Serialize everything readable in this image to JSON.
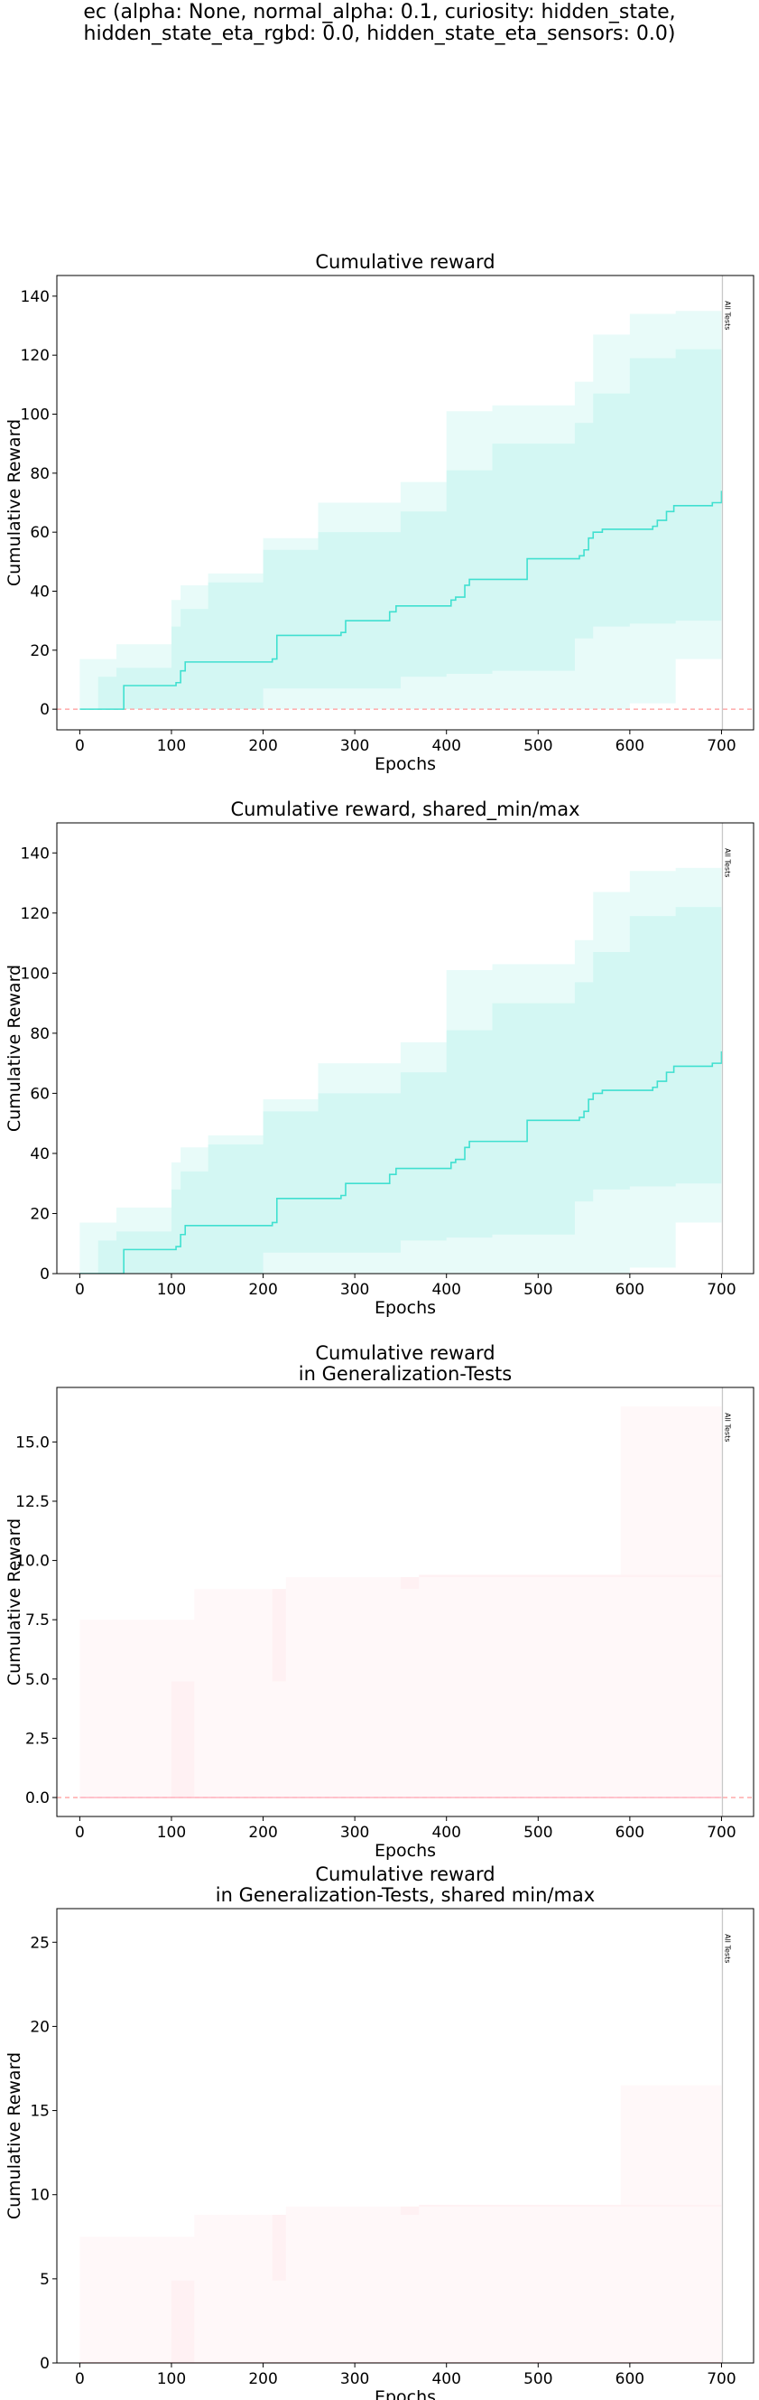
{
  "figure": {
    "suptitle": "ec (alpha: None, normal_alpha: 0.1, curiosity: hidden_state,\nhidden_state_eta_rgbd: 0.0, hidden_state_eta_sensors: 0.0)"
  },
  "colors": {
    "train": "#40e0d0",
    "gen": "#ffb6c1",
    "zero_line": "#ff9999"
  },
  "chart_data": [
    {
      "type": "line",
      "title": "Cumulative reward",
      "xlabel": "Epochs",
      "ylabel": "Cumulative Reward",
      "xlim": [
        -25,
        735
      ],
      "ylim": [
        -7,
        147
      ],
      "xticks": [
        0,
        100,
        200,
        300,
        400,
        500,
        600,
        700
      ],
      "yticks": [
        0,
        20,
        40,
        60,
        80,
        100,
        120,
        140
      ],
      "tick_labels": [
        "0",
        "20",
        "40",
        "60",
        "80",
        "100",
        "120",
        "140"
      ],
      "zero_line": true,
      "vline": {
        "x": 701,
        "label": "All Tests"
      },
      "series": [
        {
          "kind": "mean",
          "x": [
            0,
            45,
            48,
            105,
            110,
            115,
            210,
            215,
            285,
            290,
            338,
            345,
            398,
            405,
            410,
            420,
            425,
            480,
            488,
            545,
            550,
            555,
            560,
            570,
            625,
            630,
            640,
            648,
            690,
            700
          ],
          "y": [
            0,
            0,
            8,
            9,
            13,
            16,
            17,
            25,
            26,
            30,
            33,
            35,
            35,
            37,
            38,
            42,
            44,
            44,
            51,
            52,
            54,
            58,
            60,
            61,
            62,
            64,
            67,
            69,
            70,
            74
          ]
        },
        {
          "kind": "inner",
          "x": [
            0,
            20,
            40,
            100,
            110,
            140,
            200,
            260,
            350,
            400,
            450,
            540,
            560,
            600,
            650,
            700
          ],
          "lower": [
            0,
            0,
            0,
            0,
            0,
            0,
            0,
            7,
            7,
            11,
            12,
            13,
            24,
            28,
            29,
            30
          ],
          "upper": [
            0,
            11,
            14,
            28,
            34,
            43,
            54,
            60,
            67,
            81,
            90,
            97,
            107,
            119,
            122,
            129
          ]
        },
        {
          "kind": "outer",
          "x": [
            0,
            20,
            40,
            100,
            110,
            140,
            200,
            260,
            350,
            400,
            450,
            540,
            560,
            600,
            650,
            700
          ],
          "lower": [
            0,
            0,
            0,
            0,
            0,
            0,
            0,
            0,
            0,
            0,
            0,
            0,
            0,
            0,
            2,
            17
          ],
          "upper": [
            17,
            17,
            22,
            37,
            42,
            46,
            58,
            70,
            77,
            101,
            103,
            111,
            127,
            134,
            135,
            137
          ]
        }
      ]
    },
    {
      "type": "line",
      "title": "Cumulative reward, shared_min/max",
      "xlabel": "Epochs",
      "ylabel": "Cumulative Reward",
      "xlim": [
        -25,
        735
      ],
      "ylim": [
        0,
        150
      ],
      "xticks": [
        0,
        100,
        200,
        300,
        400,
        500,
        600,
        700
      ],
      "yticks": [
        0,
        20,
        40,
        60,
        80,
        100,
        120,
        140
      ],
      "tick_labels": [
        "0",
        "20",
        "40",
        "60",
        "80",
        "100",
        "120",
        "140"
      ],
      "zero_line": false,
      "vline": {
        "x": 701,
        "label": "All Tests"
      },
      "series": [
        {
          "kind": "mean",
          "x": [
            0,
            45,
            48,
            105,
            110,
            115,
            210,
            215,
            285,
            290,
            338,
            345,
            398,
            405,
            410,
            420,
            425,
            480,
            488,
            545,
            550,
            555,
            560,
            570,
            625,
            630,
            640,
            648,
            690,
            700
          ],
          "y": [
            0,
            0,
            8,
            9,
            13,
            16,
            17,
            25,
            26,
            30,
            33,
            35,
            35,
            37,
            38,
            42,
            44,
            44,
            51,
            52,
            54,
            58,
            60,
            61,
            62,
            64,
            67,
            69,
            70,
            74
          ]
        },
        {
          "kind": "inner",
          "x": [
            0,
            20,
            40,
            100,
            110,
            140,
            200,
            260,
            350,
            400,
            450,
            540,
            560,
            600,
            650,
            700
          ],
          "lower": [
            0,
            0,
            0,
            0,
            0,
            0,
            0,
            7,
            7,
            11,
            12,
            13,
            24,
            28,
            29,
            30
          ],
          "upper": [
            0,
            11,
            14,
            28,
            34,
            43,
            54,
            60,
            67,
            81,
            90,
            97,
            107,
            119,
            122,
            129
          ]
        },
        {
          "kind": "outer",
          "x": [
            0,
            20,
            40,
            100,
            110,
            140,
            200,
            260,
            350,
            400,
            450,
            540,
            560,
            600,
            650,
            700
          ],
          "lower": [
            0,
            0,
            0,
            0,
            0,
            0,
            0,
            0,
            0,
            0,
            0,
            0,
            0,
            0,
            2,
            17
          ],
          "upper": [
            17,
            17,
            22,
            37,
            42,
            46,
            58,
            70,
            77,
            101,
            103,
            111,
            127,
            134,
            135,
            137
          ]
        }
      ]
    },
    {
      "type": "area",
      "title": "Cumulative reward\nin Generalization-Tests",
      "xlabel": "Epochs",
      "ylabel": "Cumulative Reward",
      "xlim": [
        -25,
        735
      ],
      "ylim": [
        -0.8,
        17.3
      ],
      "xticks": [
        0,
        100,
        200,
        300,
        400,
        500,
        600,
        700
      ],
      "yticks": [
        0,
        2.5,
        5,
        7.5,
        10,
        12.5,
        15
      ],
      "tick_labels": [
        "0.0",
        "2.5",
        "5.0",
        "7.5",
        "10.0",
        "12.5",
        "15.0"
      ],
      "zero_line": true,
      "vline": {
        "x": 701,
        "label": "All Tests"
      },
      "series": [
        {
          "kind": "mean",
          "x": [
            0,
            700
          ],
          "y": [
            0,
            0
          ]
        },
        {
          "kind": "inner",
          "x": [
            0,
            100,
            125,
            210,
            225,
            350,
            370,
            700
          ],
          "lower": [
            0,
            0,
            4.9,
            4.9,
            8.8,
            8.8,
            9.3,
            9.4
          ],
          "upper": [
            0,
            0,
            4.9,
            4.9,
            8.8,
            8.8,
            9.3,
            9.4
          ]
        },
        {
          "kind": "outer",
          "x": [
            0,
            100,
            125,
            210,
            225,
            350,
            370,
            570,
            590,
            700
          ],
          "lower": [
            0,
            0,
            0,
            0,
            0,
            0,
            0,
            0,
            0,
            0
          ],
          "upper": [
            7.5,
            7.5,
            8.8,
            8.8,
            9.3,
            9.3,
            9.4,
            9.4,
            16.5,
            16.5
          ]
        }
      ]
    },
    {
      "type": "area",
      "title": "Cumulative reward\nin Generalization-Tests, shared min/max",
      "xlabel": "Epochs",
      "ylabel": "Cumulative Reward",
      "xlim": [
        -25,
        735
      ],
      "ylim": [
        0,
        27
      ],
      "xticks": [
        0,
        100,
        200,
        300,
        400,
        500,
        600,
        700
      ],
      "yticks": [
        0,
        5,
        10,
        15,
        20,
        25
      ],
      "tick_labels": [
        "0",
        "5",
        "10",
        "15",
        "20",
        "25"
      ],
      "zero_line": false,
      "vline": {
        "x": 701,
        "label": "All Tests"
      },
      "series": [
        {
          "kind": "mean",
          "x": [
            0,
            700
          ],
          "y": [
            0,
            0
          ]
        },
        {
          "kind": "inner",
          "x": [
            0,
            100,
            125,
            210,
            225,
            350,
            370,
            700
          ],
          "lower": [
            0,
            0,
            4.9,
            4.9,
            8.8,
            8.8,
            9.3,
            9.4
          ],
          "upper": [
            0,
            0,
            4.9,
            4.9,
            8.8,
            8.8,
            9.3,
            9.4
          ]
        },
        {
          "kind": "outer",
          "x": [
            0,
            100,
            125,
            210,
            225,
            350,
            370,
            570,
            590,
            700
          ],
          "lower": [
            0,
            0,
            0,
            0,
            0,
            0,
            0,
            0,
            0,
            0
          ],
          "upper": [
            7.5,
            7.5,
            8.8,
            8.8,
            9.3,
            9.3,
            9.4,
            9.4,
            16.5,
            16.5
          ]
        }
      ]
    }
  ]
}
